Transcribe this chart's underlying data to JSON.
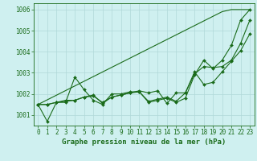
{
  "xlabel": "Graphe pression niveau de la mer (hPa)",
  "x": [
    0,
    1,
    2,
    3,
    4,
    5,
    6,
    7,
    8,
    9,
    10,
    11,
    12,
    13,
    14,
    15,
    16,
    17,
    18,
    19,
    20,
    21,
    22,
    23
  ],
  "series_trend": [
    1001.5,
    1001.72,
    1001.94,
    1002.16,
    1002.38,
    1002.6,
    1002.82,
    1003.04,
    1003.26,
    1003.48,
    1003.7,
    1003.92,
    1004.14,
    1004.36,
    1004.58,
    1004.8,
    1005.02,
    1005.24,
    1005.46,
    1005.68,
    1005.9,
    1006.0,
    1006.0,
    1006.0
  ],
  "series_main": [
    1001.5,
    1000.7,
    1001.6,
    1001.6,
    1002.8,
    1002.2,
    1001.7,
    1001.5,
    1002.0,
    1002.0,
    1002.1,
    1002.1,
    1001.6,
    1001.7,
    1001.8,
    1001.6,
    1001.8,
    1002.9,
    1003.6,
    1003.2,
    1003.6,
    1004.3,
    1005.5,
    1006.0
  ],
  "series2": [
    1001.5,
    1001.5,
    1001.6,
    1001.7,
    1001.7,
    1001.85,
    1001.9,
    1001.6,
    1001.85,
    1001.95,
    1002.05,
    1002.1,
    1001.65,
    1001.75,
    1001.85,
    1001.65,
    1002.05,
    1002.95,
    1003.3,
    1003.25,
    1003.3,
    1003.6,
    1004.4,
    1005.5
  ],
  "series3": [
    1001.5,
    1001.5,
    1001.6,
    1001.65,
    1001.7,
    1001.85,
    1001.95,
    1001.55,
    1001.85,
    1001.95,
    1002.05,
    1002.15,
    1002.05,
    1002.15,
    1001.55,
    1002.05,
    1002.05,
    1003.05,
    1002.45,
    1002.55,
    1003.05,
    1003.55,
    1004.05,
    1004.85
  ],
  "line_color": "#1a6b1a",
  "bg_color": "#cff0f0",
  "grid_color": "#b0d8d8",
  "ylim": [
    1000.5,
    1006.3
  ],
  "yticks": [
    1001,
    1002,
    1003,
    1004,
    1005,
    1006
  ],
  "label_fontsize": 6.5,
  "tick_fontsize": 5.5
}
